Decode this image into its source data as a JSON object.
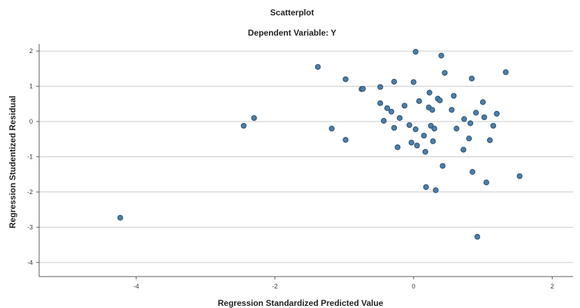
{
  "chart_data": {
    "type": "scatter",
    "title": "Scatterplot",
    "subtitle": "Dependent Variable: Y",
    "xlabel": "Regression Standardized Predicted Value",
    "ylabel": "Regression Studentized Residual",
    "xlim": [
      -5.4,
      2.3
    ],
    "ylim": [
      -4.4,
      2.2
    ],
    "x_ticks": [
      -4,
      -2,
      0,
      2
    ],
    "y_ticks": [
      2,
      1,
      0,
      -1,
      -2,
      -3,
      -4
    ],
    "grid": "horizontal",
    "point_color": "#4a7fab",
    "points": [
      {
        "x": -4.23,
        "y": -2.73
      },
      {
        "x": -2.45,
        "y": -0.12
      },
      {
        "x": -2.3,
        "y": 0.1
      },
      {
        "x": -1.38,
        "y": 1.55
      },
      {
        "x": -1.18,
        "y": -0.2
      },
      {
        "x": -0.98,
        "y": 1.2
      },
      {
        "x": -0.98,
        "y": -0.52
      },
      {
        "x": -0.75,
        "y": 0.92
      },
      {
        "x": -0.73,
        "y": 0.93
      },
      {
        "x": -0.48,
        "y": 0.98
      },
      {
        "x": -0.48,
        "y": 0.52
      },
      {
        "x": -0.43,
        "y": 0.02
      },
      {
        "x": -0.38,
        "y": 0.38
      },
      {
        "x": -0.32,
        "y": 0.28
      },
      {
        "x": -0.28,
        "y": 1.13
      },
      {
        "x": -0.28,
        "y": -0.18
      },
      {
        "x": -0.23,
        "y": -0.73
      },
      {
        "x": -0.2,
        "y": 0.1
      },
      {
        "x": -0.13,
        "y": 0.45
      },
      {
        "x": -0.06,
        "y": -0.1
      },
      {
        "x": -0.03,
        "y": -0.6
      },
      {
        "x": 0.0,
        "y": 1.12
      },
      {
        "x": 0.03,
        "y": 1.98
      },
      {
        "x": 0.03,
        "y": -0.22
      },
      {
        "x": 0.05,
        "y": -0.68
      },
      {
        "x": 0.08,
        "y": 0.58
      },
      {
        "x": 0.15,
        "y": -0.4
      },
      {
        "x": 0.17,
        "y": -0.86
      },
      {
        "x": 0.18,
        "y": -1.86
      },
      {
        "x": 0.22,
        "y": 0.4
      },
      {
        "x": 0.23,
        "y": 0.82
      },
      {
        "x": 0.25,
        "y": -0.12
      },
      {
        "x": 0.27,
        "y": 0.33
      },
      {
        "x": 0.28,
        "y": -0.56
      },
      {
        "x": 0.3,
        "y": -0.2
      },
      {
        "x": 0.32,
        "y": -1.95
      },
      {
        "x": 0.35,
        "y": 0.65
      },
      {
        "x": 0.38,
        "y": 0.6
      },
      {
        "x": 0.4,
        "y": 1.87
      },
      {
        "x": 0.42,
        "y": -1.26
      },
      {
        "x": 0.45,
        "y": 1.38
      },
      {
        "x": 0.55,
        "y": 0.33
      },
      {
        "x": 0.58,
        "y": 0.73
      },
      {
        "x": 0.62,
        "y": -0.2
      },
      {
        "x": 0.72,
        "y": -0.8
      },
      {
        "x": 0.73,
        "y": 0.07
      },
      {
        "x": 0.8,
        "y": -0.48
      },
      {
        "x": 0.82,
        "y": -0.05
      },
      {
        "x": 0.84,
        "y": 1.22
      },
      {
        "x": 0.85,
        "y": -1.43
      },
      {
        "x": 0.9,
        "y": 0.25
      },
      {
        "x": 0.92,
        "y": -3.27
      },
      {
        "x": 1.0,
        "y": 0.55
      },
      {
        "x": 1.02,
        "y": 0.12
      },
      {
        "x": 1.05,
        "y": -1.73
      },
      {
        "x": 1.1,
        "y": -0.53
      },
      {
        "x": 1.15,
        "y": -0.12
      },
      {
        "x": 1.2,
        "y": 0.22
      },
      {
        "x": 1.33,
        "y": 1.4
      },
      {
        "x": 1.53,
        "y": -1.55
      }
    ]
  }
}
